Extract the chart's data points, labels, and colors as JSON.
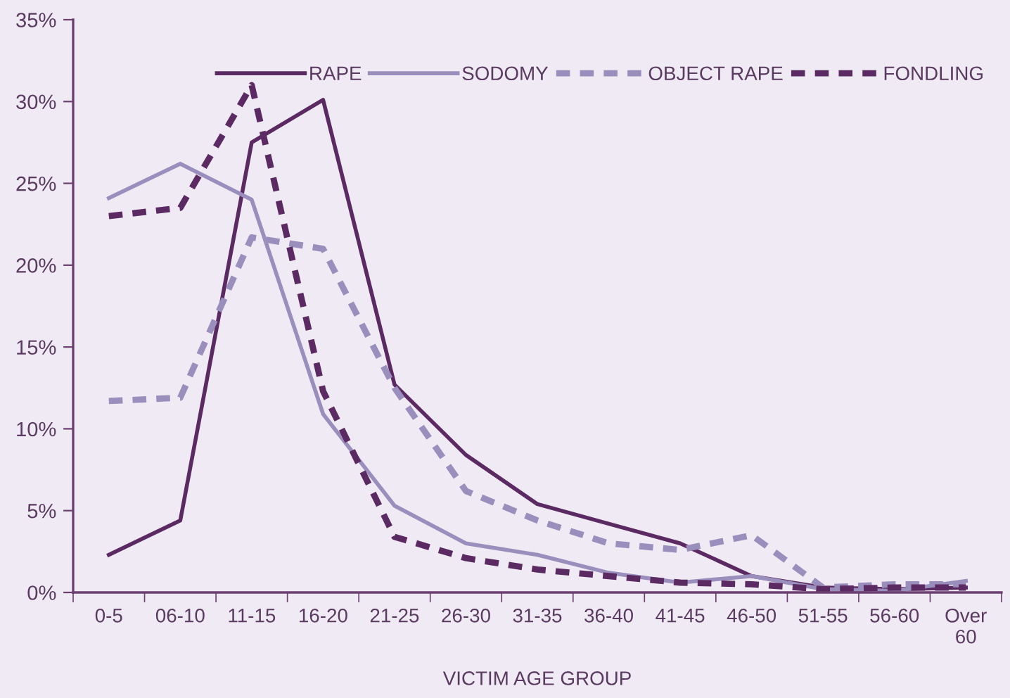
{
  "chart_data": {
    "type": "line",
    "xlabel": "VICTIM AGE GROUP",
    "categories": [
      "0-5",
      "06-10",
      "11-15",
      "16-20",
      "21-25",
      "26-30",
      "31-35",
      "36-40",
      "41-45",
      "46-50",
      "51-55",
      "56-60",
      "Over\n60"
    ],
    "series": [
      {
        "name": "RAPE",
        "color": "#5b2a62",
        "line_style": "solid",
        "values": [
          2.3,
          4.4,
          27.5,
          30.1,
          12.7,
          8.4,
          5.4,
          4.2,
          3.0,
          1.0,
          0.3,
          0.2,
          0.3
        ]
      },
      {
        "name": "SODOMY",
        "color": "#9a8fbc",
        "line_style": "solid",
        "values": [
          24.1,
          26.2,
          24.0,
          10.9,
          5.3,
          3.0,
          2.3,
          1.2,
          0.6,
          1.0,
          0.2,
          0.1,
          0.7
        ]
      },
      {
        "name": "OBJECT RAPE",
        "color": "#9a8fbc",
        "line_style": "dashed",
        "values": [
          11.7,
          11.9,
          21.7,
          21.0,
          12.5,
          6.2,
          4.4,
          3.0,
          2.6,
          3.5,
          0.3,
          0.5,
          0.5
        ]
      },
      {
        "name": "FONDLING",
        "color": "#5b2a62",
        "line_style": "dashed",
        "values": [
          23.0,
          23.5,
          31.0,
          12.3,
          3.4,
          2.1,
          1.4,
          1.0,
          0.6,
          0.5,
          0.2,
          0.3,
          0.3
        ]
      }
    ],
    "ylim": [
      0,
      35
    ],
    "yticks": [
      {
        "value": 0,
        "label": "0%"
      },
      {
        "value": 5,
        "label": "5%"
      },
      {
        "value": 10,
        "label": "10%"
      },
      {
        "value": 15,
        "label": "15%"
      },
      {
        "value": 20,
        "label": "20%"
      },
      {
        "value": 25,
        "label": "25%"
      },
      {
        "value": 30,
        "label": "30%"
      },
      {
        "value": 35,
        "label": "35%"
      }
    ],
    "grid": false,
    "legend": "top right"
  }
}
